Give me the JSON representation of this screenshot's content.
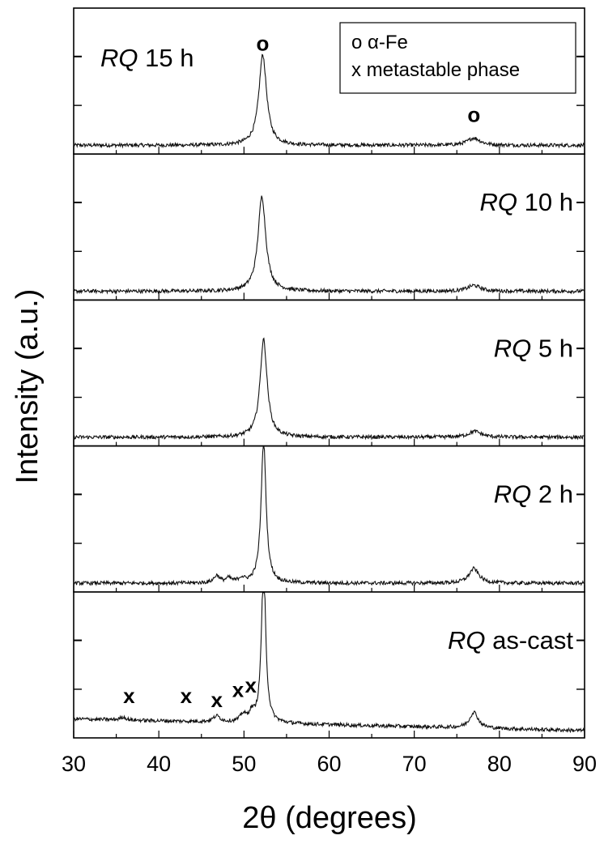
{
  "chart_data": {
    "type": "line",
    "xlabel": "2θ (degrees)",
    "ylabel": "Intensity (a.u.)",
    "xlim": [
      30,
      90
    ],
    "x_ticks": [
      "30",
      "40",
      "50",
      "60",
      "70",
      "80",
      "90"
    ],
    "panels": [
      {
        "label_italic": "RQ",
        "label_rest": " 15 h",
        "label_position": "top-left",
        "peaks": [
          {
            "x": 52.2,
            "height": 0.62,
            "width": 0.55
          },
          {
            "x": 77.0,
            "height": 0.05,
            "width": 0.9
          }
        ],
        "baseline": 0.06,
        "markers": [
          {
            "symbol": "o",
            "x": 52.2,
            "y": 0.71
          },
          {
            "symbol": "o",
            "x": 77.0,
            "y": 0.22
          }
        ]
      },
      {
        "label_italic": "RQ",
        "label_rest": " 10 h",
        "label_position": "right",
        "peaks": [
          {
            "x": 52.1,
            "height": 0.65,
            "width": 0.55
          },
          {
            "x": 77.0,
            "height": 0.04,
            "width": 0.9
          }
        ],
        "baseline": 0.06,
        "markers": []
      },
      {
        "label_italic": "RQ",
        "label_rest": " 5 h",
        "label_position": "right",
        "peaks": [
          {
            "x": 52.3,
            "height": 0.67,
            "width": 0.5
          },
          {
            "x": 77.1,
            "height": 0.04,
            "width": 0.9
          }
        ],
        "baseline": 0.06,
        "markers": []
      },
      {
        "label_italic": "RQ",
        "label_rest": " 2 h",
        "label_position": "right",
        "peaks": [
          {
            "x": 52.3,
            "height": 0.98,
            "width": 0.35
          },
          {
            "x": 77.0,
            "height": 0.1,
            "width": 0.7
          },
          {
            "x": 46.8,
            "height": 0.05,
            "width": 0.4
          },
          {
            "x": 48.2,
            "height": 0.03,
            "width": 0.4
          },
          {
            "x": 49.7,
            "height": 0.03,
            "width": 0.4
          }
        ],
        "baseline": 0.06,
        "markers": []
      },
      {
        "label_italic": "RQ",
        "label_rest": " as-cast",
        "label_position": "right",
        "peaks": [
          {
            "x": 52.3,
            "height": 1.1,
            "width": 0.3
          },
          {
            "x": 77.0,
            "height": 0.11,
            "width": 0.6
          },
          {
            "x": 35.8,
            "height": 0.02,
            "width": 0.4
          },
          {
            "x": 46.8,
            "height": 0.04,
            "width": 0.5
          },
          {
            "x": 49.9,
            "height": 0.05,
            "width": 0.4
          },
          {
            "x": 50.9,
            "height": 0.06,
            "width": 0.35
          }
        ],
        "baseline": 0.13,
        "baseline_end": 0.05,
        "markers": [
          {
            "symbol": "x",
            "x": 36.5,
            "y": 0.24
          },
          {
            "symbol": "x",
            "x": 43.2,
            "y": 0.24
          },
          {
            "symbol": "x",
            "x": 46.8,
            "y": 0.21
          },
          {
            "symbol": "x",
            "x": 49.3,
            "y": 0.28
          },
          {
            "symbol": "x",
            "x": 50.8,
            "y": 0.31
          }
        ]
      }
    ],
    "legend": {
      "position": "top-right",
      "entries": [
        {
          "symbol": "o",
          "text": "α-Fe"
        },
        {
          "symbol": "x",
          "text": "metastable phase"
        }
      ]
    }
  }
}
